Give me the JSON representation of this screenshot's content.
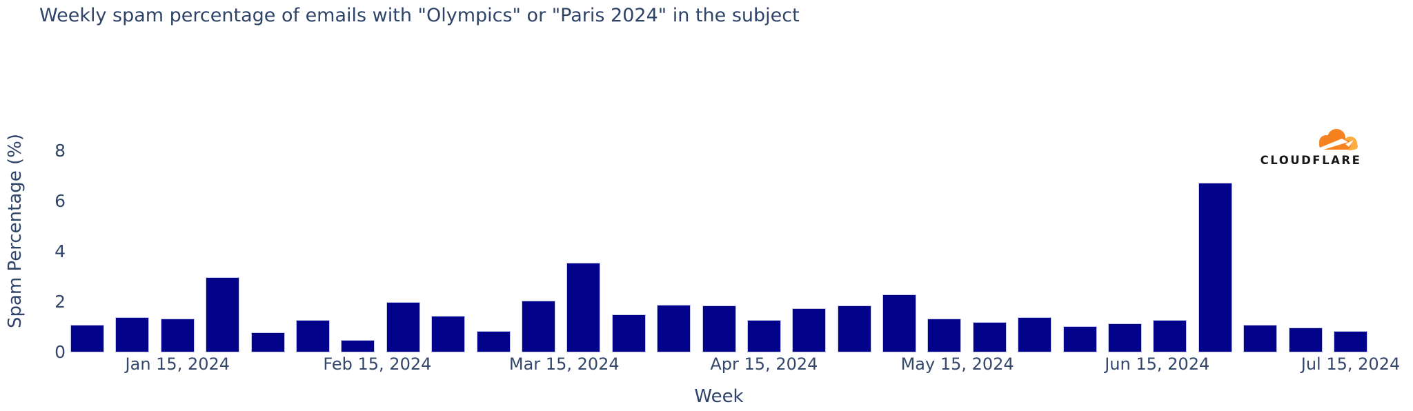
{
  "page": {
    "background": "#FFFFFF",
    "text_color": "#2E4368"
  },
  "branding": {
    "logo_text": "CLOUDFLARE",
    "cloud_color": "#F6821F",
    "cloud_light_color": "#FBAD41",
    "wordmark_color": "#171717"
  },
  "chart_data": {
    "type": "bar",
    "title": "Weekly spam percentage of emails with \"Olympics\" or \"Paris 2024\" in the subject",
    "xlabel": "Week",
    "ylabel": "Spam Percentage (%)",
    "ylim": [
      0,
      8
    ],
    "yticks": [
      0,
      2,
      4,
      6,
      8
    ],
    "grid": false,
    "legend": "none",
    "bar_color": "#02028A",
    "bar_border_color": "#C3C8E6",
    "x": [
      "Jan 1, 2024",
      "Jan 8, 2024",
      "Jan 15, 2024",
      "Jan 22, 2024",
      "Jan 29, 2024",
      "Feb 5, 2024",
      "Feb 12, 2024",
      "Feb 19, 2024",
      "Feb 26, 2024",
      "Mar 4, 2024",
      "Mar 11, 2024",
      "Mar 18, 2024",
      "Mar 25, 2024",
      "Apr 1, 2024",
      "Apr 8, 2024",
      "Apr 15, 2024",
      "Apr 22, 2024",
      "Apr 29, 2024",
      "May 6, 2024",
      "May 13, 2024",
      "May 20, 2024",
      "May 27, 2024",
      "Jun 3, 2024",
      "Jun 10, 2024",
      "Jun 17, 2024",
      "Jun 24, 2024",
      "Jul 1, 2024",
      "Jul 8, 2024",
      "Jul 15, 2024"
    ],
    "values": [
      1.1,
      1.4,
      1.35,
      3.0,
      0.8,
      1.3,
      0.5,
      2.0,
      1.45,
      0.85,
      2.05,
      3.55,
      1.5,
      1.9,
      1.85,
      1.3,
      1.75,
      1.85,
      2.3,
      1.35,
      1.2,
      1.4,
      1.05,
      1.15,
      1.3,
      6.75,
      1.1,
      1.0,
      0.85
    ],
    "xticks": [
      {
        "label": "Jan 15, 2024",
        "day": 14
      },
      {
        "label": "Feb 15, 2024",
        "day": 45
      },
      {
        "label": "Mar 15, 2024",
        "day": 74
      },
      {
        "label": "Apr 15, 2024",
        "day": 105
      },
      {
        "label": "May 15, 2024",
        "day": 135
      },
      {
        "label": "Jun 15, 2024",
        "day": 166
      },
      {
        "label": "Jul 15, 2024",
        "day": 196
      }
    ]
  }
}
